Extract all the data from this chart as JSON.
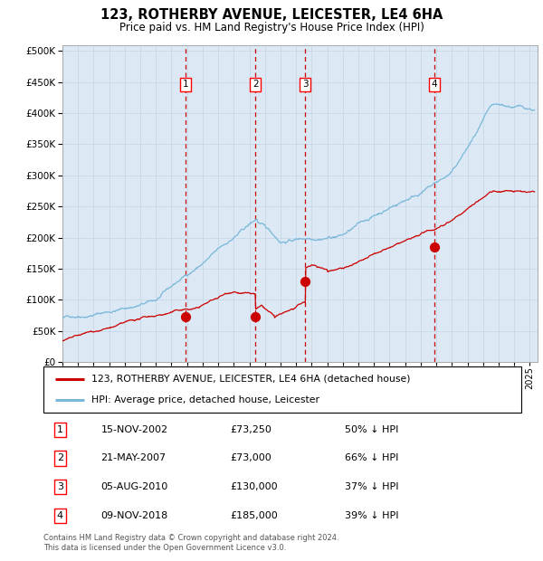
{
  "title": "123, ROTHERBY AVENUE, LEICESTER, LE4 6HA",
  "subtitle": "Price paid vs. HM Land Registry's House Price Index (HPI)",
  "footer": "Contains HM Land Registry data © Crown copyright and database right 2024.\nThis data is licensed under the Open Government Licence v3.0.",
  "legend_line1": "123, ROTHERBY AVENUE, LEICESTER, LE4 6HA (detached house)",
  "legend_line2": "HPI: Average price, detached house, Leicester",
  "plot_bg_color": "#dce9f5",
  "hpi_line_color": "#7ab8d9",
  "price_line_color": "#cc0000",
  "marker_color": "#cc0000",
  "vline_color": "#cc0000",
  "grid_color": "#c8d8e8",
  "transactions": [
    {
      "label": "1",
      "date_num": 2002.88,
      "price": 73250
    },
    {
      "label": "2",
      "date_num": 2007.39,
      "price": 73000
    },
    {
      "label": "3",
      "date_num": 2010.59,
      "price": 130000
    },
    {
      "label": "4",
      "date_num": 2018.86,
      "price": 185000
    }
  ],
  "table_rows": [
    [
      "1",
      "15-NOV-2002",
      "£73,250",
      "50% ↓ HPI"
    ],
    [
      "2",
      "21-MAY-2007",
      "£73,000",
      "66% ↓ HPI"
    ],
    [
      "3",
      "05-AUG-2010",
      "£130,000",
      "37% ↓ HPI"
    ],
    [
      "4",
      "09-NOV-2018",
      "£185,000",
      "39% ↓ HPI"
    ]
  ],
  "xmin": 1995.0,
  "xmax": 2025.5,
  "ymin": 0,
  "ymax": 510000,
  "yticks": [
    0,
    50000,
    100000,
    150000,
    200000,
    250000,
    300000,
    350000,
    400000,
    450000,
    500000
  ]
}
